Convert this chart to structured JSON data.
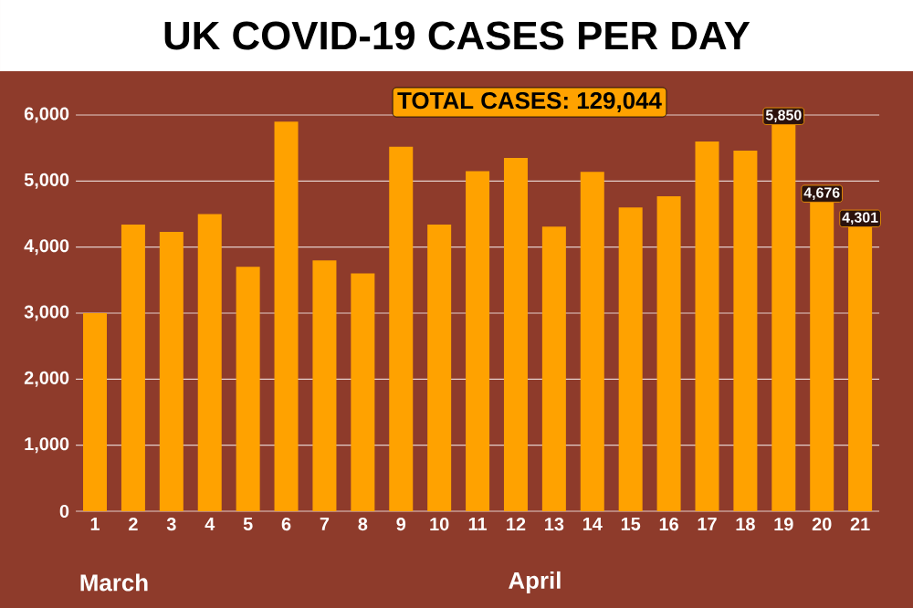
{
  "chart_data": {
    "type": "bar",
    "title": "UK COVID-19 CASES PER DAY",
    "categories": [
      "1",
      "2",
      "3",
      "4",
      "5",
      "6",
      "7",
      "8",
      "9",
      "10",
      "11",
      "12",
      "13",
      "14",
      "15",
      "16",
      "17",
      "18",
      "19",
      "20",
      "21"
    ],
    "values": [
      3000,
      4340,
      4230,
      4500,
      3700,
      5900,
      3800,
      3600,
      5520,
      4340,
      5150,
      5350,
      4310,
      5140,
      4600,
      4770,
      5600,
      5460,
      5850,
      4676,
      4301
    ],
    "value_labels": [
      null,
      null,
      null,
      null,
      null,
      null,
      null,
      null,
      null,
      null,
      null,
      null,
      null,
      null,
      null,
      null,
      null,
      null,
      "5,850",
      "4,676",
      "4,301"
    ],
    "color": "#ffa200",
    "ylim": [
      0,
      6000
    ],
    "yticks": [
      0,
      {
        "value": 1000,
        "label": "1,000"
      },
      {
        "value": 2000,
        "label": "2,000"
      },
      {
        "value": 3000,
        "label": "3,000"
      },
      {
        "value": 4000,
        "label": "4,000"
      },
      {
        "value": 5000,
        "label": "5,000"
      },
      {
        "value": 6000,
        "label": "6,000"
      }
    ],
    "grid": "y",
    "annotations": [
      "TOTAL CASES: 129,044",
      "March",
      "April"
    ]
  }
}
